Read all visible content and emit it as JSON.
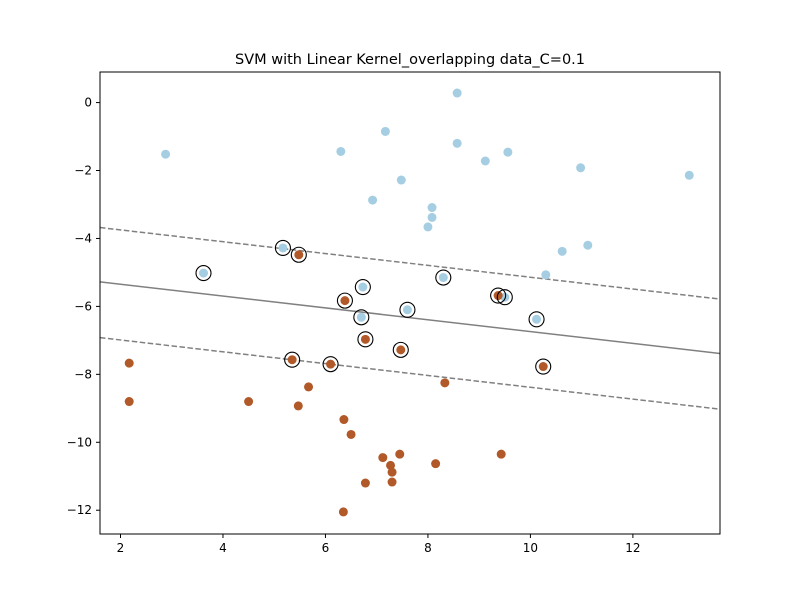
{
  "chart_data": {
    "type": "scatter",
    "title": "SVM with Linear Kernel_overlapping data_C=0.1",
    "xlabel": "",
    "ylabel": "",
    "xlim": [
      1.6,
      13.7
    ],
    "ylim": [
      -12.7,
      0.9
    ],
    "xticks": [
      2,
      4,
      6,
      8,
      10,
      12
    ],
    "yticks": [
      0,
      -2,
      -4,
      -6,
      -8,
      -10,
      -12
    ],
    "grid": false,
    "colors": {
      "class_a": "#a6cee3",
      "class_b": "#b15928",
      "decision_line": "#808080",
      "support_vector_ring": "#000000"
    },
    "series": [
      {
        "points": [
          [
            2.88,
            -1.52
          ],
          [
            6.3,
            -1.44
          ],
          [
            7.17,
            -0.85
          ],
          [
            8.57,
            0.28
          ],
          [
            8.57,
            -1.2
          ],
          [
            9.12,
            -1.72
          ],
          [
            9.56,
            -1.46
          ],
          [
            10.98,
            -1.92
          ],
          [
            13.1,
            -2.14
          ],
          [
            7.48,
            -2.28
          ],
          [
            6.92,
            -2.87
          ],
          [
            8.08,
            -3.09
          ],
          [
            8.08,
            -3.38
          ],
          [
            8.0,
            -3.66
          ],
          [
            10.62,
            -4.38
          ],
          [
            11.12,
            -4.2
          ],
          [
            10.3,
            -5.07
          ],
          [
            3.62,
            -5.02
          ],
          [
            5.17,
            -4.28
          ],
          [
            6.73,
            -5.43
          ],
          [
            8.3,
            -5.15
          ],
          [
            9.5,
            -5.73
          ],
          [
            6.7,
            -6.32
          ],
          [
            7.6,
            -6.1
          ],
          [
            10.12,
            -6.38
          ]
        ]
      },
      {
        "points": [
          [
            2.17,
            -7.67
          ],
          [
            2.17,
            -8.8
          ],
          [
            4.5,
            -8.8
          ],
          [
            5.47,
            -8.93
          ],
          [
            5.67,
            -8.37
          ],
          [
            6.36,
            -9.33
          ],
          [
            6.5,
            -9.77
          ],
          [
            7.12,
            -10.45
          ],
          [
            7.27,
            -10.68
          ],
          [
            7.3,
            -10.88
          ],
          [
            7.45,
            -10.35
          ],
          [
            8.15,
            -10.63
          ],
          [
            9.43,
            -10.35
          ],
          [
            6.78,
            -11.2
          ],
          [
            7.3,
            -11.17
          ],
          [
            6.35,
            -12.05
          ],
          [
            8.33,
            -8.25
          ],
          [
            5.48,
            -4.48
          ],
          [
            6.38,
            -5.83
          ],
          [
            6.78,
            -6.97
          ],
          [
            5.35,
            -7.57
          ],
          [
            6.1,
            -7.7
          ],
          [
            7.47,
            -7.28
          ],
          [
            9.37,
            -5.68
          ],
          [
            10.25,
            -7.77
          ]
        ]
      }
    ],
    "support_vectors": [
      [
        3.62,
        -5.02
      ],
      [
        5.17,
        -4.28
      ],
      [
        5.48,
        -4.48
      ],
      [
        6.73,
        -5.43
      ],
      [
        8.3,
        -5.15
      ],
      [
        9.37,
        -5.68
      ],
      [
        9.5,
        -5.73
      ],
      [
        6.38,
        -5.83
      ],
      [
        6.7,
        -6.32
      ],
      [
        7.6,
        -6.1
      ],
      [
        10.12,
        -6.38
      ],
      [
        6.78,
        -6.97
      ],
      [
        5.35,
        -7.57
      ],
      [
        6.1,
        -7.7
      ],
      [
        7.47,
        -7.28
      ],
      [
        10.25,
        -7.77
      ]
    ],
    "decision_boundary": {
      "slope": -0.1741,
      "intercept": -5.0,
      "margin_upper_intercept": -3.4,
      "margin_lower_intercept": -6.64,
      "style": {
        "boundary": "solid",
        "margins": "dashed"
      }
    }
  }
}
